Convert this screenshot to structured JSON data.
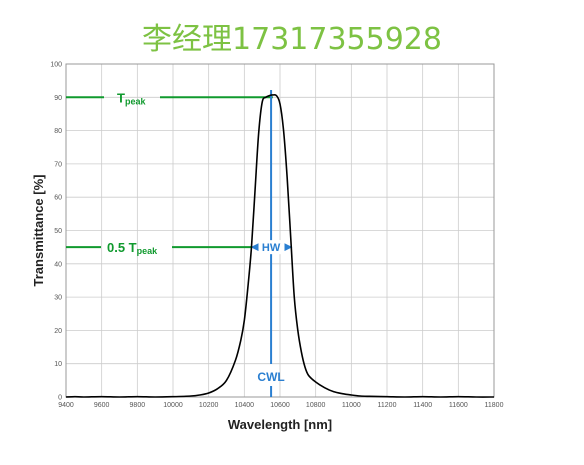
{
  "watermark": "李经理17317355928",
  "chart_data": {
    "type": "line",
    "title": "",
    "xlabel": "Wavelength [nm]",
    "ylabel": "Transmittance [%]",
    "xlim": [
      9400,
      11800
    ],
    "ylim": [
      0,
      100
    ],
    "x_ticks": [
      9400,
      9600,
      9800,
      10000,
      10200,
      10400,
      10600,
      10800,
      11000,
      11200,
      11400,
      11600,
      11800
    ],
    "y_ticks": [
      0,
      10,
      20,
      30,
      40,
      50,
      60,
      70,
      80,
      90,
      100
    ],
    "grid": true,
    "colors": {
      "curve": "#000000",
      "green": "#109a2e",
      "blue": "#2a7fd1",
      "grid": "#cccccc"
    },
    "series": [
      {
        "x": [
          9400,
          9450,
          9500,
          9600,
          9700,
          9800,
          9900,
          10000,
          10100,
          10150,
          10200,
          10250,
          10300,
          10350,
          10380,
          10400,
          10420,
          10440,
          10460,
          10480,
          10500,
          10520,
          10540,
          10560,
          10580,
          10600,
          10620,
          10640,
          10660,
          10680,
          10700,
          10720,
          10740,
          10760,
          10800,
          10850,
          10900,
          10950,
          11000,
          11050,
          11100,
          11200,
          11300,
          11400,
          11500,
          11600,
          11700,
          11800
        ],
        "y": [
          0,
          0.1,
          0,
          0.1,
          0,
          0.1,
          0,
          0.1,
          0.3,
          0.6,
          1.2,
          2.5,
          5,
          11,
          17,
          23,
          33,
          45,
          62,
          79,
          88.5,
          90,
          90.5,
          90.7,
          90.5,
          88,
          80,
          66,
          48,
          30,
          20,
          13.5,
          9,
          6.5,
          4.5,
          2.8,
          1.6,
          1,
          0.6,
          0.3,
          0.2,
          0.1,
          0,
          0.1,
          0,
          0.1,
          0,
          0
        ]
      }
    ],
    "annotations": {
      "t_peak": {
        "value": 90,
        "label_main": "T",
        "label_sub": "peak",
        "x_end": 10560
      },
      "half_t_peak": {
        "value": 45,
        "label_main": "0.5 T",
        "label_sub": "peak",
        "x_end": 10440
      },
      "hw": {
        "label": "HW",
        "x_left": 10440,
        "x_right": 10665,
        "y": 45
      },
      "cwl": {
        "label": "CWL",
        "x": 10550
      }
    }
  }
}
